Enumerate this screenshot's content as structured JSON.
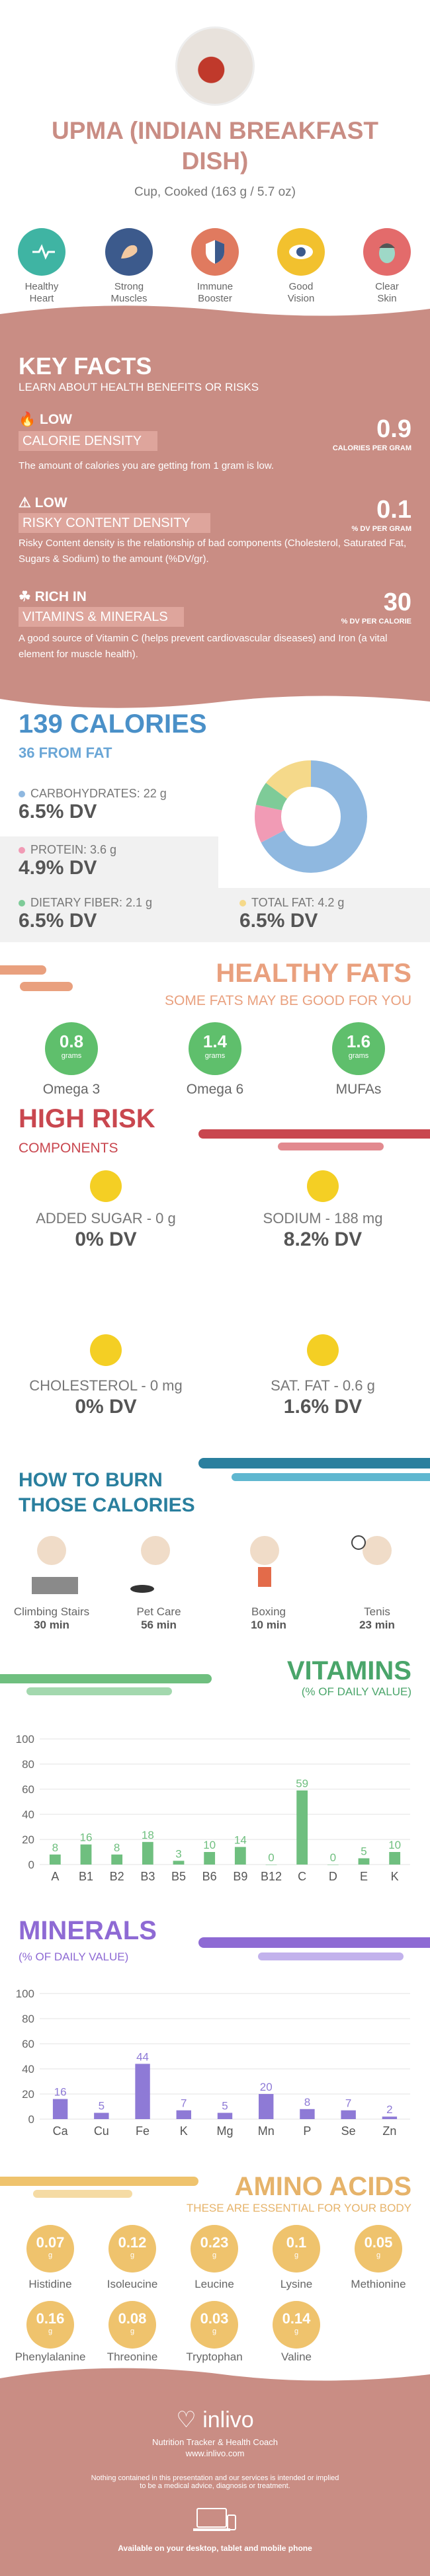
{
  "header": {
    "title_line1": "UPMA (INDIAN BREAKFAST",
    "title_line2": "DISH)",
    "serving": "Cup, Cooked (163 g / 5.7 oz)"
  },
  "benefits": [
    {
      "label_line1": "Healthy",
      "label_line2": "Heart",
      "icon": "heart-icon",
      "color": "#3fb4a3"
    },
    {
      "label_line1": "Strong",
      "label_line2": "Muscles",
      "icon": "muscle-icon",
      "color": "#3c5a8c"
    },
    {
      "label_line1": "Immune",
      "label_line2": "Booster",
      "icon": "shield-icon",
      "color": "#e07a5f"
    },
    {
      "label_line1": "Good",
      "label_line2": "Vision",
      "icon": "eye-icon",
      "color": "#f2c12e"
    },
    {
      "label_line1": "Clear",
      "label_line2": "Skin",
      "icon": "face-icon",
      "color": "#e36b6b"
    }
  ],
  "key_facts": {
    "title": "KEY FACTS",
    "subtitle": "LEARN ABOUT HEALTH BENEFITS OR RISKS",
    "items": [
      {
        "level": "LOW",
        "name": "CALORIE DENSITY",
        "value": "0.9",
        "unit": "CALORIES PER GRAM",
        "text": "The amount of calories you are getting from 1 gram is low."
      },
      {
        "level": "LOW",
        "name": "RISKY CONTENT DENSITY",
        "value": "0.1",
        "unit": "% DV PER GRAM",
        "text": "Risky Content density is the relationship of bad components (Cholesterol, Saturated Fat, Sugars & Sodium) to the amount (%DV/gr)."
      },
      {
        "level": "RICH  IN",
        "name": "VITAMINS & MINERALS",
        "value": "30",
        "unit": "% DV PER CALORIE",
        "text": "A good source of Vitamin C (helps prevent cardiovascular diseases) and Iron (a vital element for muscle health)."
      }
    ]
  },
  "calories": {
    "title": "139 CALORIES",
    "subtitle": "36 FROM FAT",
    "carbs_label": "CARBOHYDRATES: 22 g",
    "carbs_dv": "6.5% DV",
    "protein_label": "PROTEIN: 3.6 g",
    "protein_dv": "4.9% DV",
    "fiber_label": "DIETARY FIBER: 2.1 g",
    "fiber_dv": "6.5% DV",
    "fat_label": "TOTAL FAT: 4.2 g",
    "fat_dv": "6.5% DV",
    "colors": {
      "carbs": "#8fb8e0",
      "protein": "#f19bb5",
      "fiber": "#7ecb98",
      "fat": "#f5d98a"
    }
  },
  "healthy_fats": {
    "title": "HEALTHY FATS",
    "subtitle": "SOME FATS MAY BE GOOD FOR YOU",
    "items": [
      {
        "value": "0.8",
        "unit": "grams",
        "name": "Omega 3"
      },
      {
        "value": "1.4",
        "unit": "grams",
        "name": "Omega 6"
      },
      {
        "value": "1.6",
        "unit": "grams",
        "name": "MUFAs"
      }
    ]
  },
  "high_risk": {
    "title": "HIGH RISK",
    "subtitle": "COMPONENTS",
    "items": [
      {
        "label": "ADDED SUGAR - 0 g",
        "dv": "0% DV"
      },
      {
        "label": "SODIUM - 188 mg",
        "dv": "8.2% DV"
      },
      {
        "label": "CHOLESTEROL - 0 mg",
        "dv": "0% DV"
      },
      {
        "label": "SAT. FAT - 0.6 g",
        "dv": "1.6% DV"
      }
    ]
  },
  "burn": {
    "title_line1": "HOW TO BURN",
    "title_line2": "THOSE CALORIES",
    "activities": [
      {
        "name": "Climbing Stairs",
        "time": "30 min"
      },
      {
        "name": "Pet Care",
        "time": "56 min"
      },
      {
        "name": "Boxing",
        "time": "10 min"
      },
      {
        "name": "Tenis",
        "time": "23 min"
      }
    ]
  },
  "vitamins": {
    "title": "VITAMINS",
    "subtitle": "(% OF DAILY VALUE)"
  },
  "minerals": {
    "title": "MINERALS",
    "subtitle": "(% OF DAILY VALUE)"
  },
  "chart_data": [
    {
      "type": "bar",
      "categories": [
        "A",
        "B1",
        "B2",
        "B3",
        "B5",
        "B6",
        "B9",
        "B12",
        "C",
        "D",
        "E",
        "K"
      ],
      "values": [
        8,
        16,
        8,
        18,
        3,
        10,
        14,
        0,
        59,
        0,
        5,
        10
      ],
      "ylim": [
        0,
        100
      ],
      "yticks": [
        0,
        20,
        40,
        60,
        80,
        100
      ],
      "color": "#6fbf7f"
    },
    {
      "type": "bar",
      "categories": [
        "Ca",
        "Cu",
        "Fe",
        "K",
        "Mg",
        "Mn",
        "P",
        "Se",
        "Zn"
      ],
      "values": [
        16,
        5,
        44,
        7,
        5,
        20,
        8,
        7,
        2
      ],
      "ylim": [
        0,
        100
      ],
      "yticks": [
        0,
        20,
        40,
        60,
        80,
        100
      ],
      "color": "#8e7ad6"
    }
  ],
  "amino": {
    "title": "AMINO ACIDS",
    "subtitle": "THESE ARE ESSENTIAL FOR YOUR BODY",
    "items": [
      {
        "value": "0.07",
        "unit": "g",
        "name": "Histidine"
      },
      {
        "value": "0.12",
        "unit": "g",
        "name": "Isoleucine"
      },
      {
        "value": "0.23",
        "unit": "g",
        "name": "Leucine"
      },
      {
        "value": "0.1",
        "unit": "g",
        "name": "Lysine"
      },
      {
        "value": "0.05",
        "unit": "g",
        "name": "Methionine"
      },
      {
        "value": "0.16",
        "unit": "g",
        "name": "Phenylalanine"
      },
      {
        "value": "0.08",
        "unit": "g",
        "name": "Threonine"
      },
      {
        "value": "0.03",
        "unit": "g",
        "name": "Tryptophan"
      },
      {
        "value": "0.14",
        "unit": "g",
        "name": "Valine"
      }
    ]
  },
  "footer": {
    "brand": "inlivo",
    "tagline": "Nutrition Tracker & Health Coach",
    "url": "www.inlivo.com",
    "disclaimer_line1": "Nothing contained in this presentation and our services is intended or implied",
    "disclaimer_line2": "to be a medical advice, diagnosis or treatment.",
    "available": "Available on your desktop, tablet and mobile phone"
  }
}
